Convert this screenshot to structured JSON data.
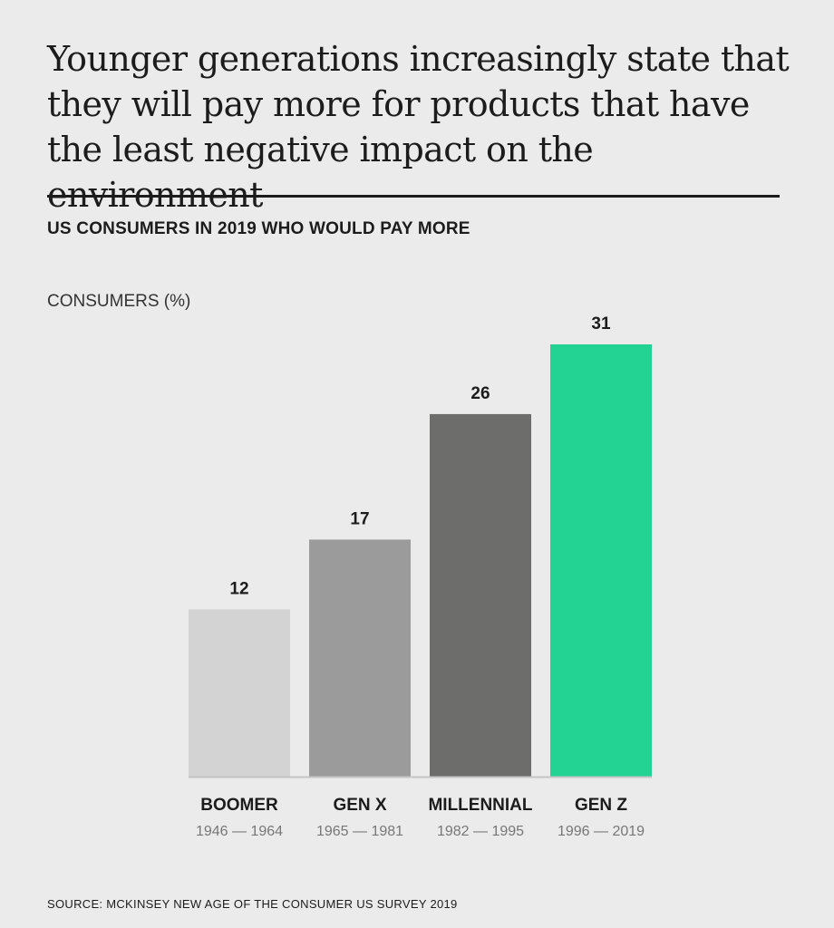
{
  "title": "Younger generations increasingly state that they will pay more for products that have the least negative impact on the environment",
  "subtitle": "US CONSUMERS IN 2019 WHO WOULD PAY MORE",
  "source": "SOURCE: MCKINSEY NEW AGE OF THE CONSUMER US SURVEY 2019",
  "chart_data": {
    "type": "bar",
    "title": "US CONSUMERS IN 2019 WHO WOULD PAY MORE",
    "xlabel": "",
    "ylabel": "CONSUMERS (%)",
    "ylim": [
      0,
      31
    ],
    "grid": false,
    "categories": [
      "BOOMER",
      "GEN X",
      "MILLENNIAL",
      "GEN Z"
    ],
    "category_subtitles": [
      "1946 — 1964",
      "1965 — 1981",
      "1982 — 1995",
      "1996 — 2019"
    ],
    "values": [
      12,
      17,
      26,
      31
    ],
    "colors": [
      "#d3d3d3",
      "#9b9b9b",
      "#6d6d6c",
      "#23d393"
    ],
    "baseline_color": "#c4c4c4"
  }
}
